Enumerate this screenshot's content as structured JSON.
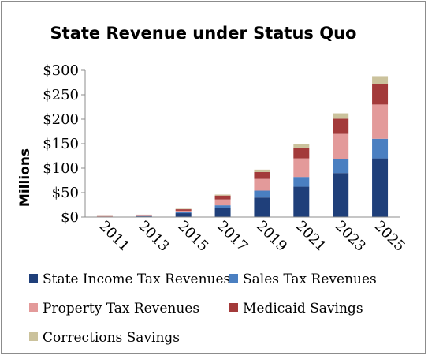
{
  "chart_data": {
    "type": "bar",
    "stacked": true,
    "title": "State Revenue under Status Quo",
    "xlabel": "",
    "ylabel": "Millions",
    "ylim": [
      0,
      300
    ],
    "yticks": [
      "$0",
      "$50",
      "$100",
      "$150",
      "$200",
      "$250",
      "$300"
    ],
    "ytick_values": [
      0,
      50,
      100,
      150,
      200,
      250,
      300
    ],
    "grid": false,
    "legend_position": "bottom",
    "categories": [
      "2011",
      "2013",
      "2015",
      "2017",
      "2019",
      "2021",
      "2023",
      "2025"
    ],
    "series": [
      {
        "name": "State Income Tax Revenues",
        "color": "#1f3f7a",
        "values": [
          0.5,
          1.5,
          8,
          18,
          40,
          62,
          90,
          120
        ]
      },
      {
        "name": "Sales Tax Revenues",
        "color": "#4a7fc1",
        "values": [
          0.3,
          0.5,
          2,
          6,
          14,
          20,
          28,
          40
        ]
      },
      {
        "name": "Property Tax Revenues",
        "color": "#e39a9a",
        "values": [
          0.5,
          1,
          3,
          12,
          24,
          38,
          52,
          70
        ]
      },
      {
        "name": "Medicaid Savings",
        "color": "#a33a3a",
        "values": [
          0.7,
          1.5,
          3,
          8,
          14,
          22,
          31,
          42
        ]
      },
      {
        "name": "Corrections Savings",
        "color": "#cbc29c",
        "values": [
          0.2,
          0.5,
          1,
          2,
          5,
          7,
          11,
          16
        ]
      }
    ]
  }
}
